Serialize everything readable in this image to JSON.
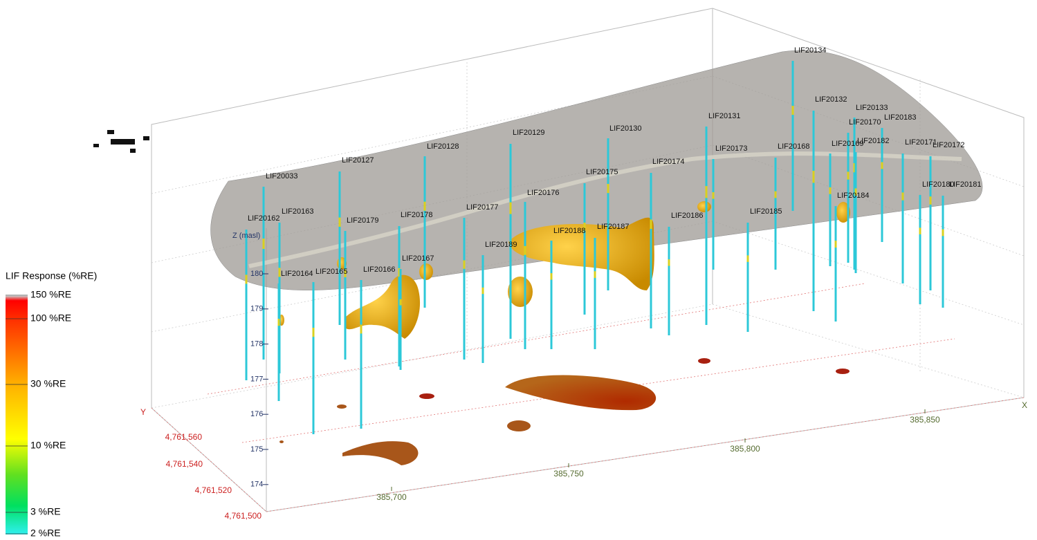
{
  "legend": {
    "title": "LIF Response (%RE)",
    "labels": [
      "150 %RE",
      "100 %RE",
      "30 %RE",
      "10 %RE",
      "3 %RE",
      "2 %RE"
    ]
  },
  "z_axis": {
    "label": "Z (masl)",
    "ticks": [
      "180",
      "179",
      "178",
      "177",
      "176",
      "175",
      "174"
    ]
  },
  "y_axis": {
    "label": "Y",
    "ticks": [
      "4,761,560",
      "4,761,540",
      "4,761,520",
      "4,761,500"
    ]
  },
  "x_axis": {
    "label": "X",
    "ticks": [
      "385,700",
      "385,750",
      "385,800",
      "385,850"
    ]
  },
  "boreholes": [
    "LIF20134",
    "LIF20132",
    "LIF20133",
    "LIF20183",
    "LIF20170",
    "LIF20131",
    "LIF20129",
    "LIF20130",
    "LIF20128",
    "LIF20173",
    "LIF20168",
    "LIF20169",
    "LIF20182",
    "LIF20171",
    "LIF20172",
    "LIF20127",
    "LIF20174",
    "LIF20175",
    "LIF20033",
    "LIF20180",
    "LIF20181",
    "LIF20176",
    "LIF20177",
    "LIF20163",
    "LIF20178",
    "LIF20179",
    "LIF20162",
    "LIF20184",
    "LIF20185",
    "LIF20186",
    "LIF20188",
    "LIF20187",
    "LIF20189",
    "LIF20167",
    "LIF20166",
    "LIF20165",
    "LIF20164"
  ]
}
